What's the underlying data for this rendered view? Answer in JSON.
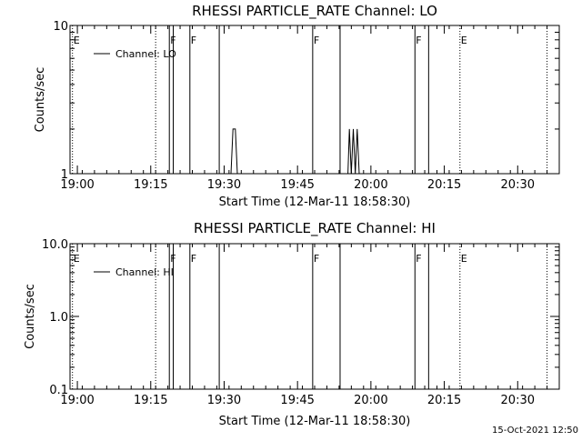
{
  "footer": {
    "timestamp": "15-Oct-2021 12:50"
  },
  "chart_data": [
    {
      "type": "line",
      "title": "RHESSI PARTICLE_RATE Channel: LO",
      "xlabel": "Start Time (12-Mar-11 18:58:30)",
      "ylabel": "Counts/sec",
      "y_scale": "log",
      "x_units": "minutes after 18:58:30",
      "xlim": [
        0,
        100
      ],
      "ylim": [
        1,
        10
      ],
      "x_tick_values": [
        1.5,
        16.5,
        31.5,
        46.5,
        61.5,
        76.5,
        91.5
      ],
      "x_tick_labels": [
        "19:00",
        "19:15",
        "19:30",
        "19:45",
        "20:00",
        "20:15",
        "20:30"
      ],
      "y_tick_values": [
        1,
        10
      ],
      "y_tick_labels": [
        "1",
        "10"
      ],
      "legend": {
        "placement": "top-left",
        "entries": [
          "Channel: LO"
        ]
      },
      "series": [
        {
          "name": "Channel: LO",
          "x": [
            0,
            32.9,
            33.3,
            33.8,
            34.2,
            34.6,
            56.8,
            57.1,
            57.5,
            57.9,
            58.3,
            58.7,
            59.1,
            100
          ],
          "y": [
            1,
            1,
            2,
            2,
            1,
            1,
            1,
            2,
            1,
            2,
            1,
            2,
            1,
            1
          ]
        }
      ],
      "markers": [
        {
          "x": 0.5,
          "label": "E",
          "style": "dotted"
        },
        {
          "x": 17.5,
          "label": "",
          "style": "dotted"
        },
        {
          "x": 20.3,
          "label": "F",
          "style": "solid"
        },
        {
          "x": 21.1,
          "label": "",
          "style": "solid"
        },
        {
          "x": 24.5,
          "label": "F",
          "style": "solid"
        },
        {
          "x": 30.5,
          "label": "",
          "style": "solid"
        },
        {
          "x": 49.6,
          "label": "F",
          "style": "solid"
        },
        {
          "x": 55.2,
          "label": "",
          "style": "solid"
        },
        {
          "x": 70.5,
          "label": "F",
          "style": "solid"
        },
        {
          "x": 73.3,
          "label": "",
          "style": "solid"
        },
        {
          "x": 79.7,
          "label": "E",
          "style": "dotted"
        },
        {
          "x": 97.5,
          "label": "",
          "style": "dotted"
        }
      ]
    },
    {
      "type": "line",
      "title": "RHESSI PARTICLE_RATE Channel: HI",
      "xlabel": "Start Time (12-Mar-11 18:58:30)",
      "ylabel": "Counts/sec",
      "y_scale": "log",
      "x_units": "minutes after 18:58:30",
      "xlim": [
        0,
        100
      ],
      "ylim": [
        0.1,
        10
      ],
      "x_tick_values": [
        1.5,
        16.5,
        31.5,
        46.5,
        61.5,
        76.5,
        91.5
      ],
      "x_tick_labels": [
        "19:00",
        "19:15",
        "19:30",
        "19:45",
        "20:00",
        "20:15",
        "20:30"
      ],
      "y_tick_values": [
        0.1,
        1,
        10
      ],
      "y_tick_labels": [
        "0.1",
        "1.0",
        "10.0"
      ],
      "legend": {
        "placement": "top-left",
        "entries": [
          "Channel: HI"
        ]
      },
      "series": [
        {
          "name": "Channel: HI",
          "x": [],
          "y": []
        }
      ],
      "markers": [
        {
          "x": 0.5,
          "label": "E",
          "style": "dotted"
        },
        {
          "x": 17.5,
          "label": "",
          "style": "dotted"
        },
        {
          "x": 20.3,
          "label": "F",
          "style": "solid"
        },
        {
          "x": 21.1,
          "label": "",
          "style": "solid"
        },
        {
          "x": 24.5,
          "label": "F",
          "style": "solid"
        },
        {
          "x": 30.5,
          "label": "",
          "style": "solid"
        },
        {
          "x": 49.6,
          "label": "F",
          "style": "solid"
        },
        {
          "x": 55.2,
          "label": "",
          "style": "solid"
        },
        {
          "x": 70.5,
          "label": "F",
          "style": "solid"
        },
        {
          "x": 73.3,
          "label": "",
          "style": "solid"
        },
        {
          "x": 79.7,
          "label": "E",
          "style": "dotted"
        },
        {
          "x": 97.5,
          "label": "",
          "style": "dotted"
        }
      ]
    }
  ]
}
